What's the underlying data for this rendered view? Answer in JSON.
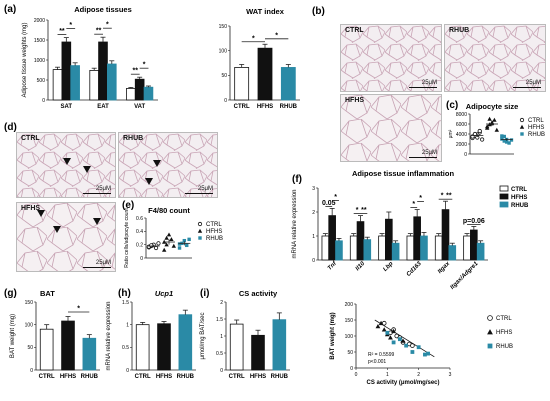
{
  "images": {
    "b1": {
      "label": "CTRL",
      "scale": "25μM"
    },
    "b2": {
      "label": "RHUB",
      "scale": "25μM"
    },
    "b3": {
      "label": "HFHS",
      "scale": "25μM"
    },
    "d1": {
      "label": "CTRL",
      "scale": "25μM"
    },
    "d2": {
      "label": "RHUB",
      "scale": "25μM"
    },
    "d3": {
      "label": "HFHS",
      "scale": "25μM"
    }
  },
  "colors": {
    "CTRL": "#ffffff",
    "HFHS": "#111111",
    "RHUB": "#2a8aa6"
  },
  "chart_data": [
    {
      "id": "a1",
      "panel": "(a)",
      "type": "bar",
      "title": "Adipose tissues",
      "ylabel": "Adipose tissue weights (mg)",
      "ylim": [
        0,
        2000
      ],
      "yticks": [
        0,
        500,
        1000,
        1500,
        2000
      ],
      "categories": [
        "SAT",
        "EAT",
        "VAT"
      ],
      "series": [
        {
          "name": "CTRL",
          "values": [
            760,
            740,
            290
          ],
          "err": [
            60,
            55,
            25
          ]
        },
        {
          "name": "HFHS",
          "values": [
            1450,
            1450,
            520
          ],
          "err": [
            110,
            120,
            50
          ]
        },
        {
          "name": "RHUB",
          "values": [
            860,
            900,
            320
          ],
          "err": [
            70,
            80,
            30
          ]
        }
      ],
      "annotations": [
        "**",
        "*",
        "**",
        "*",
        "**",
        "*"
      ]
    },
    {
      "id": "a2",
      "type": "bar",
      "title": "WAT index",
      "ylim": [
        0,
        150
      ],
      "yticks": [
        0,
        50,
        100,
        150
      ],
      "categories": [
        "CTRL",
        "HFHS",
        "RHUB"
      ],
      "values": [
        66,
        105,
        66
      ],
      "err": [
        6,
        8,
        6
      ],
      "annotations": [
        "*",
        "*"
      ]
    },
    {
      "id": "c",
      "panel": "(c)",
      "type": "scatter",
      "title": "Adipocyte size",
      "ylabel": "μm²",
      "ylim": [
        0,
        8000
      ],
      "yticks": [
        0,
        2000,
        4000,
        6000,
        8000
      ],
      "categories": [
        "CTRL",
        "HFHS",
        "RHUB"
      ],
      "series": [
        {
          "name": "CTRL",
          "values": [
            3200,
            3600,
            3900,
            4300,
            2900,
            3500,
            4000,
            3300,
            4600
          ],
          "mean": 3700,
          "err": 300
        },
        {
          "name": "HFHS",
          "values": [
            5200,
            5900,
            6300,
            6800,
            4800,
            5500,
            7000,
            6100
          ],
          "mean": 6000,
          "err": 350
        },
        {
          "name": "RHUB",
          "values": [
            3000,
            3500,
            2400,
            2200,
            2800,
            3600,
            2600,
            2900
          ],
          "mean": 2900,
          "err": 250
        }
      ],
      "annotations": [
        "**",
        "***"
      ],
      "legend": "right"
    },
    {
      "id": "e",
      "panel": "(e)",
      "type": "scatter",
      "title": "F4/80 count",
      "ylabel": "Ratio cells/adipocyte count",
      "ylim": [
        0,
        0.6
      ],
      "yticks": [
        0,
        0.2,
        0.4,
        0.6
      ],
      "categories": [
        "CTRL",
        "HFHS",
        "RHUB"
      ],
      "series": [
        {
          "name": "CTRL",
          "values": [
            0.16,
            0.18,
            0.2,
            0.15,
            0.22,
            0.17,
            0.19
          ],
          "mean": 0.18,
          "err": 0.02
        },
        {
          "name": "HFHS",
          "values": [
            0.12,
            0.2,
            0.35,
            0.28,
            0.18,
            0.24,
            0.3
          ],
          "mean": 0.24,
          "err": 0.04
        },
        {
          "name": "RHUB",
          "values": [
            0.15,
            0.22,
            0.26,
            0.19,
            0.28,
            0.21
          ],
          "mean": 0.22,
          "err": 0.03
        }
      ],
      "legend": "right"
    },
    {
      "id": "f",
      "panel": "(f)",
      "type": "bar",
      "title": "Adipose tissue inflammation",
      "ylabel": "mRNA relative expression",
      "ylim": [
        0,
        3
      ],
      "yticks": [
        0,
        1,
        2,
        3
      ],
      "categories": [
        "Tnf",
        "Il10",
        "Lbp",
        "Cd163",
        "Itgax",
        "Itgax/Adgre1"
      ],
      "series": [
        {
          "name": "CTRL",
          "values": [
            1.0,
            1.0,
            1.0,
            1.0,
            1.0,
            1.0
          ],
          "err": [
            0.1,
            0.1,
            0.1,
            0.1,
            0.1,
            0.1
          ]
        },
        {
          "name": "HFHS",
          "values": [
            1.85,
            1.6,
            1.7,
            1.8,
            2.1,
            1.25
          ],
          "err": [
            0.3,
            0.25,
            0.3,
            0.3,
            0.35,
            0.15
          ]
        },
        {
          "name": "RHUB",
          "values": [
            0.8,
            0.85,
            0.7,
            1.0,
            0.6,
            0.7
          ],
          "err": [
            0.1,
            0.1,
            0.1,
            0.15,
            0.1,
            0.1
          ]
        }
      ],
      "annotations": [
        "0.05",
        "*",
        "*",
        "**",
        "*",
        "*",
        "*",
        "**",
        "p=0.06"
      ],
      "legend": "right"
    },
    {
      "id": "g",
      "panel": "(g)",
      "type": "bar",
      "title": "BAT",
      "ylabel": "BAT weight (mg)",
      "ylim": [
        0,
        150
      ],
      "yticks": [
        0,
        50,
        100,
        150
      ],
      "categories": [
        "CTRL",
        "HFHS",
        "RHUB"
      ],
      "values": [
        90,
        108,
        70
      ],
      "err": [
        10,
        10,
        8
      ],
      "annotations": [
        "*"
      ]
    },
    {
      "id": "h",
      "panel": "(h)",
      "type": "bar",
      "title": "Ucp1",
      "ylabel": "mRNA relative expression",
      "ylim": [
        0,
        1.5
      ],
      "yticks": [
        0,
        0.5,
        1.0,
        1.5
      ],
      "categories": [
        "CTRL",
        "HFHS",
        "RHUB"
      ],
      "values": [
        1.0,
        1.02,
        1.22
      ],
      "err": [
        0.05,
        0.05,
        0.1
      ]
    },
    {
      "id": "i",
      "panel": "(i)",
      "type": "bar",
      "title": "CS activity",
      "ylabel": "μmol/mg BAT/sec",
      "ylim": [
        0,
        2.0
      ],
      "yticks": [
        0,
        0.5,
        1.0,
        1.5,
        2.0
      ],
      "categories": [
        "CTRL",
        "HFHS",
        "RHUB"
      ],
      "values": [
        1.35,
        1.02,
        1.48
      ],
      "err": [
        0.12,
        0.15,
        0.2
      ]
    },
    {
      "id": "s",
      "type": "scatter",
      "xlabel": "CS activity (μmol/mg/sec)",
      "ylabel": "BAT weight (mg)",
      "xlim": [
        0,
        3
      ],
      "ylim": [
        0,
        200
      ],
      "xticks": [
        0,
        1,
        2,
        3
      ],
      "yticks": [
        0,
        50,
        100,
        150,
        200
      ],
      "series": [
        {
          "name": "CTRL",
          "x": [
            0.9,
            1.3,
            1.5,
            1.4,
            1.7,
            1.1,
            1.8,
            1.2
          ],
          "y": [
            140,
            100,
            80,
            95,
            75,
            110,
            70,
            120
          ]
        },
        {
          "name": "HFHS",
          "x": [
            0.7,
            0.9,
            1.0,
            1.2,
            1.5,
            0.8,
            1.1
          ],
          "y": [
            130,
            120,
            105,
            115,
            85,
            140,
            95
          ]
        },
        {
          "name": "RHUB",
          "x": [
            1.0,
            1.4,
            1.6,
            2.0,
            2.3,
            1.2,
            1.8,
            2.2
          ],
          "y": [
            110,
            90,
            70,
            65,
            45,
            80,
            50,
            42
          ]
        }
      ],
      "annotations": [
        "R² = 0.5599",
        "p<0.001"
      ],
      "legend": "right"
    }
  ]
}
